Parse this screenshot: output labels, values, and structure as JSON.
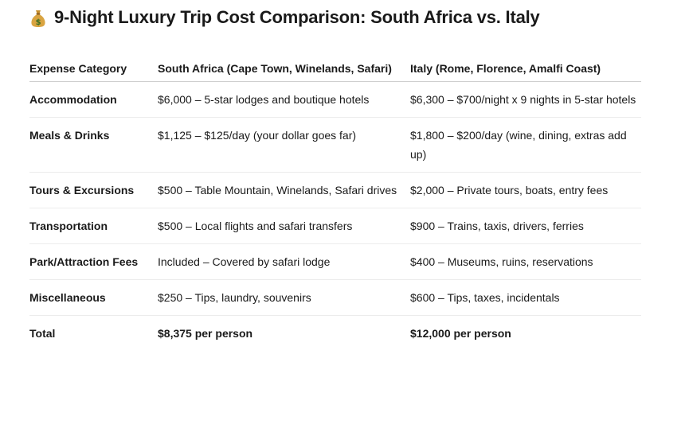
{
  "title": "9-Night Luxury Trip Cost Comparison: South Africa vs. Italy",
  "title_icon": "money-bag-icon",
  "table": {
    "headers": [
      "Expense Category",
      "South Africa (Cape Town, Winelands, Safari)",
      "Italy (Rome, Florence, Amalfi Coast)"
    ],
    "rows": [
      [
        "Accommodation",
        "$6,000 – 5-star lodges and boutique hotels",
        "$6,300 – $700/night x 9 nights in 5-star hotels"
      ],
      [
        "Meals & Drinks",
        "$1,125 – $125/day (your dollar goes far)",
        "$1,800 – $200/day (wine, dining, extras add up)"
      ],
      [
        "Tours & Excursions",
        "$500 – Table Mountain, Winelands, Safari drives",
        "$2,000 – Private tours, boats, entry fees"
      ],
      [
        "Transportation",
        "$500 – Local flights and safari transfers",
        "$900 – Trains, taxis, drivers, ferries"
      ],
      [
        "Park/Attraction Fees",
        "Included – Covered by safari lodge",
        "$400 – Museums, ruins, reservations"
      ],
      [
        "Miscellaneous",
        "$250 – Tips, laundry, souvenirs",
        "$600 – Tips, taxes, incidentals"
      ],
      [
        "Total",
        "$8,375 per person",
        "$12,000 per person"
      ]
    ]
  }
}
